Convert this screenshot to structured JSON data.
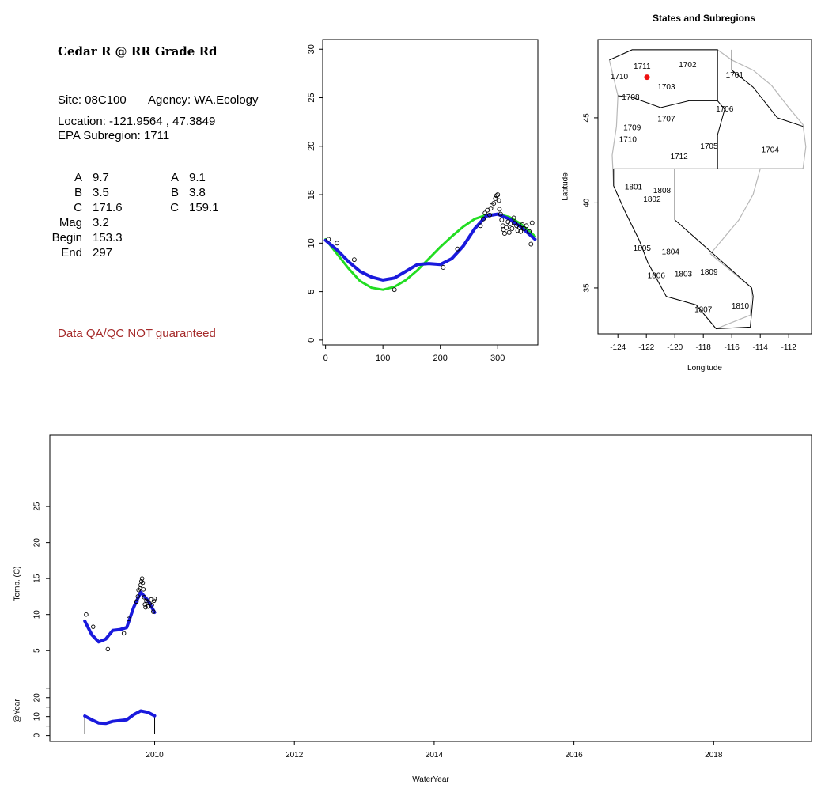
{
  "site": {
    "title": "Cedar R @ RR Grade Rd",
    "site_line": "Site: 08C100",
    "agency_line": "Agency: WA.Ecology",
    "location_line": "Location: -121.9564 , 47.3849",
    "subregion_line": "EPA Subregion: 1711",
    "params_left": [
      {
        "label": "A",
        "value": "9.7"
      },
      {
        "label": "B",
        "value": "3.5"
      },
      {
        "label": "C",
        "value": "171.6"
      },
      {
        "label": "Mag",
        "value": "3.2"
      },
      {
        "label": "Begin",
        "value": "153.3"
      },
      {
        "label": "End",
        "value": "297"
      }
    ],
    "params_right": [
      {
        "label": "A",
        "value": "9.1"
      },
      {
        "label": "B",
        "value": "3.8"
      },
      {
        "label": "C",
        "value": "159.1"
      }
    ],
    "qa_note": "Data QA/QC NOT guaranteed"
  },
  "chart_data": [
    {
      "type": "scatter",
      "name": "seasonal",
      "xlim": [
        -5,
        370
      ],
      "ylim": [
        -0.5,
        31
      ],
      "xticks": [
        0,
        100,
        200,
        300
      ],
      "yticks": [
        0,
        5,
        10,
        15,
        20,
        25,
        30
      ],
      "points": [
        [
          5,
          10.4
        ],
        [
          20,
          10.0
        ],
        [
          50,
          8.3
        ],
        [
          120,
          5.2
        ],
        [
          205,
          7.5
        ],
        [
          230,
          9.4
        ],
        [
          270,
          11.8
        ],
        [
          275,
          12.5
        ],
        [
          278,
          13.1
        ],
        [
          282,
          13.4
        ],
        [
          286,
          12.9
        ],
        [
          288,
          13.6
        ],
        [
          290,
          13.9
        ],
        [
          293,
          14.1
        ],
        [
          296,
          14.6
        ],
        [
          298,
          14.9
        ],
        [
          300,
          15.0
        ],
        [
          302,
          14.4
        ],
        [
          303,
          13.5
        ],
        [
          305,
          13.0
        ],
        [
          307,
          12.4
        ],
        [
          309,
          11.8
        ],
        [
          310,
          11.4
        ],
        [
          312,
          11.0
        ],
        [
          315,
          11.6
        ],
        [
          318,
          12.2
        ],
        [
          320,
          11.1
        ],
        [
          322,
          12.0
        ],
        [
          325,
          11.5
        ],
        [
          328,
          12.6
        ],
        [
          330,
          12.1
        ],
        [
          333,
          11.8
        ],
        [
          335,
          11.3
        ],
        [
          338,
          11.6
        ],
        [
          340,
          11.2
        ],
        [
          343,
          11.9
        ],
        [
          346,
          11.5
        ],
        [
          350,
          11.8
        ],
        [
          355,
          11.2
        ],
        [
          358,
          9.9
        ],
        [
          360,
          12.1
        ]
      ],
      "series": [
        {
          "color": "#22dd22",
          "x": [
            0,
            20,
            40,
            60,
            80,
            100,
            120,
            140,
            160,
            180,
            200,
            220,
            240,
            260,
            280,
            300,
            320,
            340,
            365
          ],
          "y": [
            10.4,
            8.9,
            7.4,
            6.1,
            5.4,
            5.2,
            5.5,
            6.2,
            7.2,
            8.4,
            9.6,
            10.7,
            11.7,
            12.5,
            12.9,
            13.0,
            12.7,
            12.0,
            10.7
          ]
        },
        {
          "color": "#1a1add",
          "x": [
            0,
            20,
            40,
            60,
            80,
            100,
            120,
            140,
            160,
            180,
            200,
            220,
            240,
            260,
            280,
            300,
            320,
            340,
            365
          ],
          "y": [
            10.3,
            9.3,
            8.1,
            7.1,
            6.5,
            6.2,
            6.4,
            7.1,
            7.8,
            7.9,
            7.8,
            8.4,
            9.7,
            11.5,
            12.8,
            13.0,
            12.5,
            11.7,
            10.4
          ]
        }
      ]
    },
    {
      "type": "map",
      "title": "States and Subregions",
      "xlabel": "Longitude",
      "ylabel": "Latitude",
      "xlim": [
        -125.4,
        -110.4
      ],
      "ylim": [
        32.3,
        49.6
      ],
      "xticks": [
        -124,
        -122,
        -120,
        -118,
        -116,
        -114,
        -112
      ],
      "yticks": [
        35,
        40,
        45
      ],
      "regions": [
        {
          "label": "1711",
          "lon": -122.3,
          "lat": 48.0
        },
        {
          "label": "1702",
          "lon": -119.1,
          "lat": 48.1
        },
        {
          "label": "1701",
          "lon": -115.8,
          "lat": 47.5
        },
        {
          "label": "1710",
          "lon": -123.9,
          "lat": 47.4
        },
        {
          "label": "1703",
          "lon": -120.6,
          "lat": 46.8
        },
        {
          "label": "1708",
          "lon": -123.1,
          "lat": 46.2
        },
        {
          "label": "1706",
          "lon": -116.5,
          "lat": 45.5
        },
        {
          "label": "1707",
          "lon": -120.6,
          "lat": 44.9
        },
        {
          "label": "1709",
          "lon": -123.0,
          "lat": 44.4
        },
        {
          "label": "1710",
          "lon": -123.3,
          "lat": 43.7
        },
        {
          "label": "1705",
          "lon": -117.6,
          "lat": 43.3
        },
        {
          "label": "1704",
          "lon": -113.3,
          "lat": 43.1
        },
        {
          "label": "1712",
          "lon": -119.7,
          "lat": 42.7
        },
        {
          "label": "1801",
          "lon": -122.9,
          "lat": 40.9
        },
        {
          "label": "1808",
          "lon": -120.9,
          "lat": 40.7
        },
        {
          "label": "1802",
          "lon": -121.6,
          "lat": 40.2
        },
        {
          "label": "1805",
          "lon": -122.3,
          "lat": 37.3
        },
        {
          "label": "1804",
          "lon": -120.3,
          "lat": 37.1
        },
        {
          "label": "1809",
          "lon": -117.6,
          "lat": 35.9
        },
        {
          "label": "1806",
          "lon": -121.3,
          "lat": 35.7
        },
        {
          "label": "1803",
          "lon": -119.4,
          "lat": 35.8
        },
        {
          "label": "1810",
          "lon": -115.4,
          "lat": 33.9
        },
        {
          "label": "1807",
          "lon": -118.0,
          "lat": 33.7
        }
      ],
      "site_point": {
        "lon": -121.9564,
        "lat": 47.3849,
        "color": "#ee1111"
      }
    },
    {
      "type": "line",
      "name": "time-series",
      "xlabel": "WaterYear",
      "ylabel_top": "Temp. (C)",
      "ylabel_bottom": "@Year",
      "xlim": [
        2008.5,
        2019.4
      ],
      "xticks": [
        2010,
        2012,
        2014,
        2016,
        2018
      ],
      "top_ylim": [
        2.5,
        30.5
      ],
      "top_yticks": [
        5,
        10,
        15,
        20,
        25
      ],
      "bottom_ylim": [
        -1,
        27
      ],
      "bottom_yticks": [
        0,
        5,
        10,
        15,
        20,
        25
      ],
      "bottom_ytick_labels": [
        "0",
        "",
        "10",
        "",
        "20",
        ""
      ],
      "points": [
        [
          2009.02,
          10.0
        ],
        [
          2009.12,
          8.3
        ],
        [
          2009.33,
          5.2
        ],
        [
          2009.56,
          7.4
        ],
        [
          2009.63,
          9.4
        ],
        [
          2009.74,
          11.8
        ],
        [
          2009.76,
          12.5
        ],
        [
          2009.77,
          13.4
        ],
        [
          2009.79,
          13.6
        ],
        [
          2009.8,
          14.1
        ],
        [
          2009.81,
          14.6
        ],
        [
          2009.82,
          15.0
        ],
        [
          2009.83,
          14.4
        ],
        [
          2009.84,
          13.5
        ],
        [
          2009.85,
          12.4
        ],
        [
          2009.86,
          11.4
        ],
        [
          2009.87,
          11.0
        ],
        [
          2009.88,
          11.9
        ],
        [
          2009.9,
          12.2
        ],
        [
          2009.91,
          11.1
        ],
        [
          2009.93,
          11.5
        ],
        [
          2009.95,
          12.1
        ],
        [
          2009.96,
          11.3
        ],
        [
          2009.98,
          10.4
        ],
        [
          2009.99,
          11.9
        ],
        [
          2010.0,
          12.2
        ]
      ],
      "series_top": {
        "color": "#1a1add",
        "x": [
          2009.0,
          2009.1,
          2009.2,
          2009.3,
          2009.4,
          2009.5,
          2009.6,
          2009.7,
          2009.8,
          2009.9,
          2010.0
        ],
        "y": [
          9.1,
          7.2,
          6.2,
          6.6,
          7.8,
          7.9,
          8.2,
          11.0,
          13.1,
          12.0,
          10.3
        ]
      },
      "series_bottom": {
        "color": "#1a1add",
        "x": [
          2009.0,
          2009.1,
          2009.2,
          2009.3,
          2009.4,
          2009.5,
          2009.6,
          2009.7,
          2009.8,
          2009.9,
          2010.0
        ],
        "y": [
          10.3,
          8.3,
          6.6,
          6.4,
          7.5,
          7.9,
          8.3,
          11.0,
          13.0,
          12.3,
          10.4
        ]
      }
    }
  ]
}
